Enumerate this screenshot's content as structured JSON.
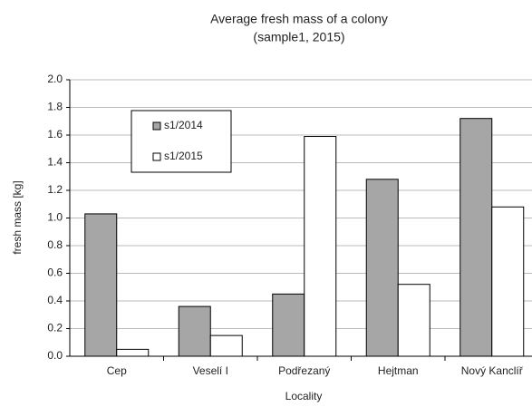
{
  "chart_data": {
    "type": "bar",
    "title": "Average fresh mass of a colony",
    "subtitle": "(sample1, 2015)",
    "y_label": "fresh mass [kg]",
    "x_label": "Locality",
    "categories": [
      "Cep",
      "Veselí I",
      "Podřezaný",
      "Hejtman",
      "Nový Kanclíř"
    ],
    "series": [
      {
        "name": "s1/2014",
        "color": "#a6a6a6",
        "values": [
          1.03,
          0.36,
          0.45,
          1.28,
          1.72
        ]
      },
      {
        "name": "s1/2015",
        "color": "#ffffff",
        "values": [
          0.05,
          0.15,
          1.59,
          0.52,
          1.08
        ]
      }
    ],
    "ylim": [
      0,
      2
    ],
    "yticks": [
      {
        "value": 0,
        "label": "0.0"
      },
      0.2,
      0.4,
      0.6,
      0.8,
      {
        "value": 1,
        "label": "1.0"
      },
      1.2,
      1.4,
      1.6,
      1.8,
      {
        "value": 2,
        "label": "2.0"
      }
    ],
    "grid": true,
    "legend": "upper-left"
  }
}
